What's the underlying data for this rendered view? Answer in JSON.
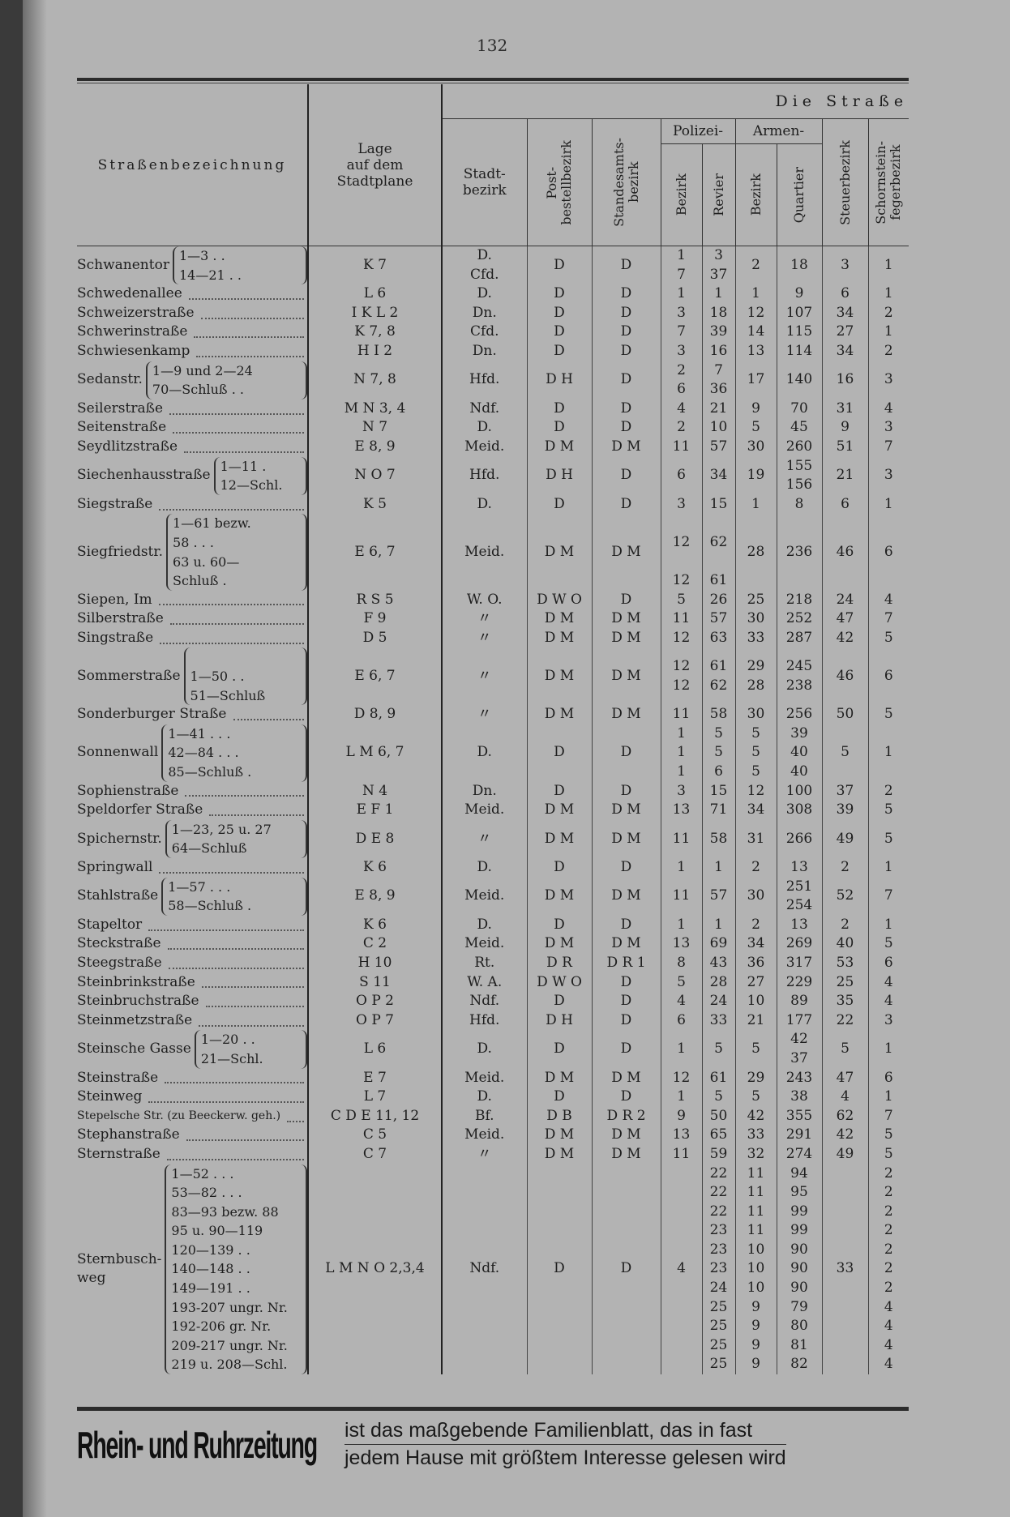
{
  "page_number": "132",
  "header": {
    "section": "Die Straße",
    "col_name": "Straßenbezeichnung",
    "col_lage": "Lage\nauf dem\nStadtplane",
    "col_stadt": "Stadt-\nbezirk",
    "col_post": "Post-\nbestellbezirk",
    "col_standes": "Standesamts-\nbezirk",
    "polizei": "Polizei-",
    "polizei_bezirk": "Bezirk",
    "polizei_revier": "Revier",
    "armen": "Armen-",
    "armen_bezirk": "Bezirk",
    "armen_quartier": "Quartier",
    "col_steuer": "Steuerbezirk",
    "col_schorn": "Schornstein-\nfegerbezirk"
  },
  "rows": [
    {
      "name": "Schwanentor",
      "range": "1—3 . .\n14—21 . .",
      "lage": "K 7",
      "stadt": "D.\nCfd.",
      "post": "D",
      "standes": "D",
      "pb": "1\n7",
      "rev": "3\n37",
      "ab": "2",
      "q": "18",
      "st": "3",
      "sf": "1"
    },
    {
      "name": "Schwedenallee",
      "range": "",
      "lage": "L 6",
      "stadt": "D.",
      "post": "D",
      "standes": "D",
      "pb": "1",
      "rev": "1",
      "ab": "1",
      "q": "9",
      "st": "6",
      "sf": "1"
    },
    {
      "name": "Schweizerstraße",
      "range": "",
      "lage": "I K L 2",
      "stadt": "Dn.",
      "post": "D",
      "standes": "D",
      "pb": "3",
      "rev": "18",
      "ab": "12",
      "q": "107",
      "st": "34",
      "sf": "2"
    },
    {
      "name": "Schwerinstraße",
      "range": "",
      "lage": "K 7, 8",
      "stadt": "Cfd.",
      "post": "D",
      "standes": "D",
      "pb": "7",
      "rev": "39",
      "ab": "14",
      "q": "115",
      "st": "27",
      "sf": "1"
    },
    {
      "name": "Schwiesenkamp",
      "range": "",
      "lage": "H I 2",
      "stadt": "Dn.",
      "post": "D",
      "standes": "D",
      "pb": "3",
      "rev": "16",
      "ab": "13",
      "q": "114",
      "st": "34",
      "sf": "2"
    },
    {
      "name": "Sedanstr.",
      "range": "1—9 und 2—24\n70—Schluß . .",
      "lage": "N 7, 8",
      "stadt": "Hfd.",
      "post": "D H",
      "standes": "D",
      "pb": "2\n6",
      "rev": "7\n36",
      "ab": "17",
      "q": "140",
      "st": "16",
      "sf": "3"
    },
    {
      "name": "Seilerstraße",
      "range": "",
      "lage": "M N 3, 4",
      "stadt": "Ndf.",
      "post": "D",
      "standes": "D",
      "pb": "4",
      "rev": "21",
      "ab": "9",
      "q": "70",
      "st": "31",
      "sf": "4"
    },
    {
      "name": "Seitenstraße",
      "range": "",
      "lage": "N 7",
      "stadt": "D.",
      "post": "D",
      "standes": "D",
      "pb": "2",
      "rev": "10",
      "ab": "5",
      "q": "45",
      "st": "9",
      "sf": "3"
    },
    {
      "name": "Seydlitzstraße",
      "range": "",
      "lage": "E 8, 9",
      "stadt": "Meid.",
      "post": "D M",
      "standes": "D M",
      "pb": "11",
      "rev": "57",
      "ab": "30",
      "q": "260",
      "st": "51",
      "sf": "7"
    },
    {
      "name": "Siechenhausstraße",
      "range": "1—11 .\n12—Schl.",
      "lage": "N O 7",
      "stadt": "Hfd.",
      "post": "D H",
      "standes": "D",
      "pb": "6",
      "rev": "34",
      "ab": "19",
      "q": "155\n156",
      "st": "21",
      "sf": "3"
    },
    {
      "name": "Siegstraße",
      "range": "",
      "lage": "K 5",
      "stadt": "D.",
      "post": "D",
      "standes": "D",
      "pb": "3",
      "rev": "15",
      "ab": "1",
      "q": "8",
      "st": "6",
      "sf": "1"
    },
    {
      "name": "Siegfriedstr.",
      "range": "1—61 bezw.\n58 . . .\n63 u. 60—\nSchluß .",
      "lage": "E 6, 7",
      "stadt": "Meid.",
      "post": "D M",
      "standes": "D M",
      "pb": "\n12\n\n12",
      "rev": "\n62\n\n61",
      "ab": "28",
      "q": "236",
      "st": "46",
      "sf": "6"
    },
    {
      "name": "Siepen, Im",
      "range": "",
      "lage": "R S 5",
      "stadt": "W. O.",
      "post": "D W O",
      "standes": "D",
      "pb": "5",
      "rev": "26",
      "ab": "25",
      "q": "218",
      "st": "24",
      "sf": "4"
    },
    {
      "name": "Silberstraße",
      "range": "",
      "lage": "F 9",
      "stadt": "〃",
      "post": "D M",
      "standes": "D M",
      "pb": "11",
      "rev": "57",
      "ab": "30",
      "q": "252",
      "st": "47",
      "sf": "7"
    },
    {
      "name": "Singstraße",
      "range": "",
      "lage": "D 5",
      "stadt": "〃",
      "post": "D M",
      "standes": "D M",
      "pb": "12",
      "rev": "63",
      "ab": "33",
      "q": "287",
      "st": "42",
      "sf": "5"
    },
    {
      "name": "Sommerstraße",
      "range": "\n1—50 . .\n51—Schluß\n",
      "lage": "E 6, 7",
      "stadt": "〃",
      "post": "D M",
      "standes": "D M",
      "pb": "12\n12",
      "rev": "61\n62",
      "ab": "29\n28",
      "q": "245\n238",
      "st": "46",
      "sf": "6"
    },
    {
      "name": "Sonderburger Straße",
      "range": "",
      "lage": "D 8, 9",
      "stadt": "〃",
      "post": "D M",
      "standes": "D M",
      "pb": "11",
      "rev": "58",
      "ab": "30",
      "q": "256",
      "st": "50",
      "sf": "5"
    },
    {
      "name": "Sonnenwall",
      "range": "1—41 . . .\n42—84 . . .\n85—Schluß .",
      "lage": "L M 6, 7",
      "stadt": "D.",
      "post": "D",
      "standes": "D",
      "pb": "1\n1\n1",
      "rev": "5\n5\n6",
      "ab": "5\n5\n5",
      "q": "39\n40\n40",
      "st": "5",
      "sf": "1"
    },
    {
      "name": "Sophienstraße",
      "range": "",
      "lage": "N 4",
      "stadt": "Dn.",
      "post": "D",
      "standes": "D",
      "pb": "3",
      "rev": "15",
      "ab": "12",
      "q": "100",
      "st": "37",
      "sf": "2"
    },
    {
      "name": "Speldorfer Straße",
      "range": "",
      "lage": "E F 1",
      "stadt": "Meid.",
      "post": "D M",
      "standes": "D M",
      "pb": "13",
      "rev": "71",
      "ab": "34",
      "q": "308",
      "st": "39",
      "sf": "5"
    },
    {
      "name": "Spichernstr.",
      "range": "1—23, 25 u. 27\n64—Schluß",
      "lage": "D E 8",
      "stadt": "〃",
      "post": "D M",
      "standes": "D M",
      "pb": "11",
      "rev": "58",
      "ab": "31",
      "q": "266",
      "st": "49",
      "sf": "5"
    },
    {
      "name": "Springwall",
      "range": "",
      "lage": "K 6",
      "stadt": "D.",
      "post": "D",
      "standes": "D",
      "pb": "1",
      "rev": "1",
      "ab": "2",
      "q": "13",
      "st": "2",
      "sf": "1"
    },
    {
      "name": "Stahlstraße",
      "range": "1—57 . . .\n58—Schluß .",
      "lage": "E 8, 9",
      "stadt": "Meid.",
      "post": "D M",
      "standes": "D M",
      "pb": "11",
      "rev": "57",
      "ab": "30",
      "q": "251\n254",
      "st": "52",
      "sf": "7"
    },
    {
      "name": "Stapeltor",
      "range": "",
      "lage": "K 6",
      "stadt": "D.",
      "post": "D",
      "standes": "D",
      "pb": "1",
      "rev": "1",
      "ab": "2",
      "q": "13",
      "st": "2",
      "sf": "1"
    },
    {
      "name": "Steckstraße",
      "range": "",
      "lage": "C 2",
      "stadt": "Meid.",
      "post": "D M",
      "standes": "D M",
      "pb": "13",
      "rev": "69",
      "ab": "34",
      "q": "269",
      "st": "40",
      "sf": "5"
    },
    {
      "name": "Steegstraße",
      "range": "",
      "lage": "H 10",
      "stadt": "Rt.",
      "post": "D R",
      "standes": "D R 1",
      "pb": "8",
      "rev": "43",
      "ab": "36",
      "q": "317",
      "st": "53",
      "sf": "6"
    },
    {
      "name": "Steinbrinkstraße",
      "range": "",
      "lage": "S 11",
      "stadt": "W. A.",
      "post": "D W O",
      "standes": "D",
      "pb": "5",
      "rev": "28",
      "ab": "27",
      "q": "229",
      "st": "25",
      "sf": "4"
    },
    {
      "name": "Steinbruchstraße",
      "range": "",
      "lage": "O P 2",
      "stadt": "Ndf.",
      "post": "D",
      "standes": "D",
      "pb": "4",
      "rev": "24",
      "ab": "10",
      "q": "89",
      "st": "35",
      "sf": "4"
    },
    {
      "name": "Steinmetzstraße",
      "range": "",
      "lage": "O P 7",
      "stadt": "Hfd.",
      "post": "D H",
      "standes": "D",
      "pb": "6",
      "rev": "33",
      "ab": "21",
      "q": "177",
      "st": "22",
      "sf": "3"
    },
    {
      "name": "Steinsche Gasse",
      "range": "1—20 . .\n21—Schl.",
      "lage": "L 6",
      "stadt": "D.",
      "post": "D",
      "standes": "D",
      "pb": "1",
      "rev": "5",
      "ab": "5",
      "q": "42\n37",
      "st": "5",
      "sf": "1"
    },
    {
      "name": "Steinstraße",
      "range": "",
      "lage": "E 7",
      "stadt": "Meid.",
      "post": "D M",
      "standes": "D M",
      "pb": "12",
      "rev": "61",
      "ab": "29",
      "q": "243",
      "st": "47",
      "sf": "6"
    },
    {
      "name": "Steinweg",
      "range": "",
      "lage": "L 7",
      "stadt": "D.",
      "post": "D",
      "standes": "D",
      "pb": "1",
      "rev": "5",
      "ab": "5",
      "q": "38",
      "st": "4",
      "sf": "1"
    },
    {
      "name": "Stepelsche Str. (zu Beeckerw. geh.)",
      "range": "",
      "lage": "C D E 11, 12",
      "stadt": "Bf.",
      "post": "D B",
      "standes": "D R 2",
      "pb": "9",
      "rev": "50",
      "ab": "42",
      "q": "355",
      "st": "62",
      "sf": "7"
    },
    {
      "name": "Stephanstraße",
      "range": "",
      "lage": "C 5",
      "stadt": "Meid.",
      "post": "D M",
      "standes": "D M",
      "pb": "13",
      "rev": "65",
      "ab": "33",
      "q": "291",
      "st": "42",
      "sf": "5"
    },
    {
      "name": "Sternstraße",
      "range": "",
      "lage": "C 7",
      "stadt": "〃",
      "post": "D M",
      "standes": "D M",
      "pb": "11",
      "rev": "59",
      "ab": "32",
      "q": "274",
      "st": "49",
      "sf": "5"
    },
    {
      "name": "Sternbusch-\nweg",
      "range": "1—52 . . .\n53—82 . . .\n83—93 bezw. 88\n95 u. 90—119\n120—139 . .\n140—148 . .\n149—191 . .\n193-207 ungr. Nr.\n192-206 gr. Nr.\n209-217 ungr. Nr.\n219 u. 208—Schl.",
      "lage": "L M N O 2,3,4",
      "stadt": "Ndf.",
      "post": "D",
      "standes": "D",
      "pb": "4",
      "rev": "22\n22\n22\n23\n23\n23\n24\n25\n25\n25\n25",
      "ab": "11\n11\n11\n11\n10\n10\n10\n9\n9\n9\n9",
      "q": "94\n95\n99\n99\n90\n90\n90\n79\n80\n81\n82",
      "st": "33",
      "sf": "2\n2\n2\n2\n2\n2\n2\n4\n4\n4\n4"
    }
  ],
  "ad": {
    "brand": "Rhein- und Ruhrzeitung",
    "line1": "ist das maßgebende Familienblatt, das in fast",
    "line2": "jedem Hause mit größtem Interesse gelesen wird"
  }
}
